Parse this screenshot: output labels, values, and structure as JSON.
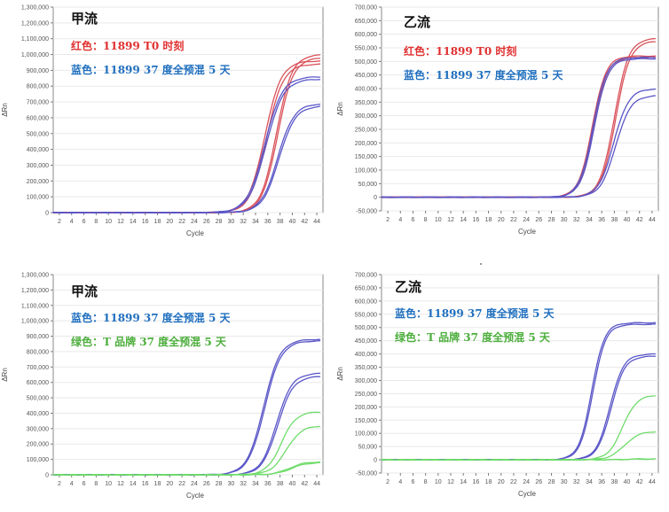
{
  "colors": {
    "red": "#e03030",
    "blue": "#1f6fbf",
    "green": "#4cae3c",
    "curve_red": "#d9525a",
    "curve_blue": "#5a56c7",
    "curve_green": "#6fdc6a"
  },
  "chart_data": [
    {
      "type": "line",
      "heading": "甲流",
      "xlabel": "Cycle",
      "ylabel": "ΔRn",
      "x_ticks": [
        2,
        4,
        6,
        8,
        10,
        12,
        14,
        16,
        18,
        20,
        22,
        24,
        26,
        28,
        30,
        32,
        34,
        36,
        38,
        40,
        42,
        44
      ],
      "y_ticks": [
        0,
        100000,
        200000,
        300000,
        400000,
        500000,
        600000,
        700000,
        800000,
        900000,
        1000000,
        1100000,
        1200000,
        1300000
      ],
      "y_tick_labels": [
        "0",
        "100,000",
        "200,000",
        "300,000",
        "400,000",
        "500,000",
        "600,000",
        "700,000",
        "800,000",
        "900,000",
        "1,000,000",
        "1,100,000",
        "1,200,000",
        "1,300,000"
      ],
      "ylim": [
        0,
        1300000
      ],
      "xlim": [
        1,
        45
      ],
      "legend": [
        {
          "text": "红色：11899 T0  时刻",
          "color": "red"
        },
        {
          "text": "蓝色：11899 37 度全预混 5 天",
          "color": "blue"
        }
      ],
      "series": [
        {
          "color": "curve_red",
          "plateau": 960000,
          "midpoint": 35.5,
          "slope": 0.34
        },
        {
          "color": "curve_red",
          "plateau": 940000,
          "midpoint": 35.8,
          "slope": 0.34
        },
        {
          "color": "curve_red",
          "plateau": 1000000,
          "midpoint": 37.4,
          "slope": 0.36
        },
        {
          "color": "curve_red",
          "plateau": 980000,
          "midpoint": 37.6,
          "slope": 0.36
        },
        {
          "color": "curve_blue",
          "plateau": 860000,
          "midpoint": 35.5,
          "slope": 0.32
        },
        {
          "color": "curve_blue",
          "plateau": 845000,
          "midpoint": 35.7,
          "slope": 0.32
        },
        {
          "color": "curve_blue",
          "plateau": 690000,
          "midpoint": 37.6,
          "slope": 0.34
        },
        {
          "color": "curve_blue",
          "plateau": 675000,
          "midpoint": 37.8,
          "slope": 0.34
        }
      ]
    },
    {
      "type": "line",
      "heading": "乙流",
      "xlabel": "Cycle",
      "ylabel": "ΔRn",
      "x_ticks": [
        2,
        4,
        6,
        8,
        10,
        12,
        14,
        16,
        18,
        20,
        22,
        24,
        26,
        28,
        30,
        32,
        34,
        36,
        38,
        40,
        42,
        44
      ],
      "y_ticks": [
        -50000,
        0,
        50000,
        100000,
        150000,
        200000,
        250000,
        300000,
        350000,
        400000,
        450000,
        500000,
        550000,
        600000,
        650000,
        700000
      ],
      "y_tick_labels": [
        "-50,000",
        "0",
        "50,000",
        "100,000",
        "150,000",
        "200,000",
        "250,000",
        "300,000",
        "350,000",
        "400,000",
        "450,000",
        "500,000",
        "550,000",
        "600,000",
        "650,000",
        "700,000"
      ],
      "ylim": [
        -50000,
        700000
      ],
      "xlim": [
        1,
        45
      ],
      "legend": [
        {
          "text": "红色：11899 T0  时刻",
          "color": "red"
        },
        {
          "text": "蓝色：11899 37 度全预混 5 天",
          "color": "blue"
        }
      ],
      "series": [
        {
          "color": "curve_red",
          "plateau": 520000,
          "midpoint": 34.5,
          "slope": 0.42
        },
        {
          "color": "curve_red",
          "plateau": 515000,
          "midpoint": 34.7,
          "slope": 0.42
        },
        {
          "color": "curve_red",
          "plateau": 585000,
          "midpoint": 38.0,
          "slope": 0.4
        },
        {
          "color": "curve_red",
          "plateau": 575000,
          "midpoint": 38.2,
          "slope": 0.4
        },
        {
          "color": "curve_blue",
          "plateau": 515000,
          "midpoint": 34.6,
          "slope": 0.42
        },
        {
          "color": "curve_blue",
          "plateau": 510000,
          "midpoint": 34.8,
          "slope": 0.42
        },
        {
          "color": "curve_blue",
          "plateau": 400000,
          "midpoint": 37.9,
          "slope": 0.38
        },
        {
          "color": "curve_blue",
          "plateau": 375000,
          "midpoint": 38.2,
          "slope": 0.38
        }
      ]
    },
    {
      "type": "line",
      "heading": "甲流",
      "xlabel": "Cycle",
      "ylabel": "ΔRn",
      "x_ticks": [
        2,
        4,
        6,
        8,
        10,
        12,
        14,
        16,
        18,
        20,
        22,
        24,
        26,
        28,
        30,
        32,
        34,
        36,
        38,
        40,
        42,
        44
      ],
      "y_ticks": [
        0,
        100000,
        200000,
        300000,
        400000,
        500000,
        600000,
        700000,
        800000,
        900000,
        1000000,
        1100000,
        1200000,
        1300000
      ],
      "y_tick_labels": [
        "0",
        "100,000",
        "200,000",
        "300,000",
        "400,000",
        "500,000",
        "600,000",
        "700,000",
        "800,000",
        "900,000",
        "1,000,000",
        "1,100,000",
        "1,200,000",
        "1,300,000"
      ],
      "ylim": [
        0,
        1300000
      ],
      "xlim": [
        1,
        45
      ],
      "legend": [
        {
          "text": "蓝色：11899 37 度全预混 5 天",
          "color": "blue"
        },
        {
          "text": "绿色：T 品牌 37 度全预混 5 天",
          "color": "green"
        }
      ],
      "series": [
        {
          "color": "curve_blue",
          "plateau": 880000,
          "midpoint": 35.3,
          "slope": 0.34
        },
        {
          "color": "curve_blue",
          "plateau": 870000,
          "midpoint": 35.5,
          "slope": 0.34
        },
        {
          "color": "curve_blue",
          "plateau": 660000,
          "midpoint": 37.4,
          "slope": 0.36
        },
        {
          "color": "curve_blue",
          "plateau": 640000,
          "midpoint": 37.6,
          "slope": 0.36
        },
        {
          "color": "curve_green",
          "plateau": 410000,
          "midpoint": 38.2,
          "slope": 0.38
        },
        {
          "color": "curve_green",
          "plateau": 320000,
          "midpoint": 39.0,
          "slope": 0.36
        },
        {
          "color": "curve_green",
          "plateau": 85000,
          "midpoint": 39.5,
          "slope": 0.36
        },
        {
          "color": "curve_green",
          "plateau": 80000,
          "midpoint": 39.8,
          "slope": 0.36
        }
      ]
    },
    {
      "type": "line",
      "heading": "乙流",
      "xlabel": "Cycle",
      "ylabel": "ΔRn",
      "x_ticks": [
        2,
        4,
        6,
        8,
        10,
        12,
        14,
        16,
        18,
        20,
        22,
        24,
        26,
        28,
        30,
        32,
        34,
        36,
        38,
        40,
        42,
        44
      ],
      "y_ticks": [
        -50000,
        0,
        50000,
        100000,
        150000,
        200000,
        250000,
        300000,
        350000,
        400000,
        450000,
        500000,
        550000,
        600000,
        650000,
        700000
      ],
      "y_tick_labels": [
        "-50,000",
        "0",
        "50,000",
        "100,000",
        "150,000",
        "200,000",
        "250,000",
        "300,000",
        "350,000",
        "400,000",
        "450,000",
        "500,000",
        "550,000",
        "600,000",
        "650,000",
        "700,000"
      ],
      "ylim": [
        -50000,
        700000
      ],
      "xlim": [
        1,
        45
      ],
      "legend": [
        {
          "text": "蓝色：11899 37 度全预混 5 天",
          "color": "blue"
        },
        {
          "text": "绿色：T 品牌 37 度全预混 5 天",
          "color": "green"
        }
      ],
      "series": [
        {
          "color": "curve_blue",
          "plateau": 518000,
          "midpoint": 34.4,
          "slope": 0.45
        },
        {
          "color": "curve_blue",
          "plateau": 512000,
          "midpoint": 34.6,
          "slope": 0.45
        },
        {
          "color": "curve_blue",
          "plateau": 400000,
          "midpoint": 37.3,
          "slope": 0.42
        },
        {
          "color": "curve_blue",
          "plateau": 392000,
          "midpoint": 37.5,
          "slope": 0.42
        },
        {
          "color": "curve_green",
          "plateau": 245000,
          "midpoint": 39.3,
          "slope": 0.4
        },
        {
          "color": "curve_green",
          "plateau": 108000,
          "midpoint": 39.6,
          "slope": 0.38
        },
        {
          "color": "curve_green",
          "plateau": 4000,
          "midpoint": 40.0,
          "slope": 0.3
        },
        {
          "color": "curve_green",
          "plateau": 3000,
          "midpoint": 40.0,
          "slope": 0.3
        }
      ]
    }
  ]
}
